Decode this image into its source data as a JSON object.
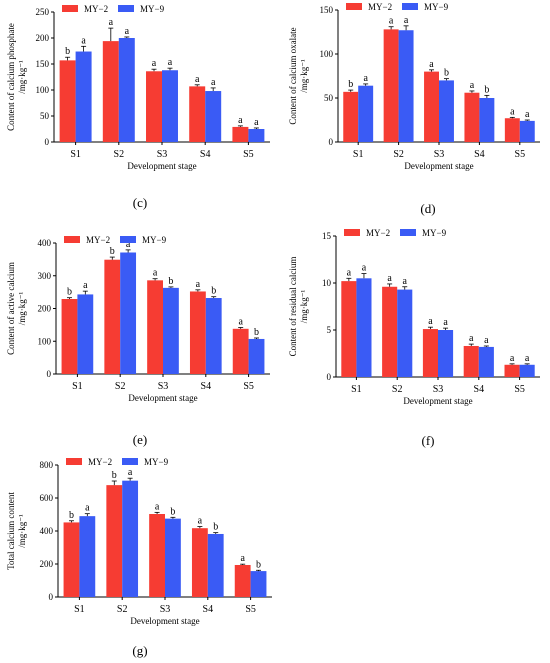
{
  "colors": {
    "MY-2": "#f63c33",
    "MY-9": "#3a5bf5"
  },
  "chart_data": [
    {
      "type": "bar",
      "panel_label": "(c)",
      "ylabel_lines": [
        "Content of calcium phosphate",
        "/mg·kg⁻¹"
      ],
      "xlabel": "Development stage",
      "categories": [
        "S1",
        "S2",
        "S3",
        "S4",
        "S5"
      ],
      "ylim": [
        0,
        250
      ],
      "yticks": [
        0,
        50,
        100,
        150,
        200,
        250
      ],
      "legend": [
        "MY−2",
        "MY−9"
      ],
      "series": [
        {
          "name": "MY−2",
          "values": [
            157,
            194,
            136,
            107,
            29
          ],
          "errors": [
            6,
            25,
            4,
            3,
            2
          ],
          "sig": [
            "b",
            "a",
            "a",
            "a",
            "a"
          ]
        },
        {
          "name": "MY−9",
          "values": [
            174,
            200,
            138,
            98,
            25
          ],
          "errors": [
            10,
            2,
            4,
            6,
            2
          ],
          "sig": [
            "a",
            "a",
            "a",
            "a",
            "a"
          ]
        }
      ]
    },
    {
      "type": "bar",
      "panel_label": "(d)",
      "ylabel_lines": [
        "Content of calcium oxalate",
        "/mg·kg⁻¹"
      ],
      "xlabel": "Development stage",
      "categories": [
        "S1",
        "S2",
        "S3",
        "S4",
        "S5"
      ],
      "ylim": [
        0,
        150
      ],
      "yticks": [
        0,
        50,
        100,
        150
      ],
      "legend": [
        "MY−2",
        "MY−9"
      ],
      "series": [
        {
          "name": "MY−2",
          "values": [
            57,
            128,
            80,
            56,
            27
          ],
          "errors": [
            2,
            3,
            2,
            2,
            1
          ],
          "sig": [
            "b",
            "a",
            "a",
            "a",
            "a"
          ]
        },
        {
          "name": "MY−9",
          "values": [
            64,
            127,
            70,
            50,
            24
          ],
          "errors": [
            2,
            5,
            2,
            3,
            1
          ],
          "sig": [
            "a",
            "a",
            "b",
            "b",
            "a"
          ]
        }
      ]
    },
    {
      "type": "bar",
      "panel_label": "(e)",
      "ylabel_lines": [
        "Content of active calcium",
        "/mg·kg⁻¹"
      ],
      "xlabel": "Development stage",
      "categories": [
        "S1",
        "S2",
        "S3",
        "S4",
        "S5"
      ],
      "ylim": [
        0,
        400
      ],
      "yticks": [
        0,
        100,
        200,
        300,
        400
      ],
      "legend": [
        "MY−2",
        "MY−9"
      ],
      "series": [
        {
          "name": "MY−2",
          "values": [
            229,
            349,
            286,
            252,
            138
          ],
          "errors": [
            4,
            8,
            5,
            5,
            4
          ],
          "sig": [
            "b",
            "b",
            "a",
            "a",
            "a"
          ]
        },
        {
          "name": "MY−9",
          "values": [
            243,
            371,
            263,
            232,
            107
          ],
          "errors": [
            10,
            8,
            3,
            4,
            3
          ],
          "sig": [
            "a",
            "a",
            "b",
            "b",
            "b"
          ]
        }
      ]
    },
    {
      "type": "bar",
      "panel_label": "(f)",
      "ylabel_lines": [
        "Content of residual calcium",
        "/mg·kg⁻¹"
      ],
      "xlabel": "Development stage",
      "categories": [
        "S1",
        "S2",
        "S3",
        "S4",
        "S5"
      ],
      "ylim": [
        0,
        15
      ],
      "yticks": [
        0,
        5,
        10,
        15
      ],
      "legend": [
        "MY−2",
        "MY−9"
      ],
      "series": [
        {
          "name": "MY−2",
          "values": [
            10.2,
            9.6,
            5.1,
            3.3,
            1.3
          ],
          "errors": [
            0.3,
            0.3,
            0.2,
            0.2,
            0.1
          ],
          "sig": [
            "a",
            "a",
            "a",
            "a",
            "a"
          ]
        },
        {
          "name": "MY−9",
          "values": [
            10.5,
            9.3,
            5.0,
            3.2,
            1.3
          ],
          "errors": [
            0.5,
            0.3,
            0.2,
            0.1,
            0.1
          ],
          "sig": [
            "a",
            "a",
            "a",
            "a",
            "a"
          ]
        }
      ]
    },
    {
      "type": "bar",
      "panel_label": "(g)",
      "ylabel_lines": [
        "Total calcium content",
        "/mg·kg⁻¹"
      ],
      "xlabel": "Development stage",
      "categories": [
        "S1",
        "S2",
        "S3",
        "S4",
        "S5"
      ],
      "ylim": [
        0,
        800
      ],
      "yticks": [
        0,
        200,
        400,
        600,
        800
      ],
      "legend": [
        "MY−2",
        "MY−9"
      ],
      "series": [
        {
          "name": "MY−2",
          "values": [
            452,
            678,
            503,
            417,
            194
          ],
          "errors": [
            10,
            25,
            10,
            10,
            5
          ],
          "sig": [
            "b",
            "b",
            "a",
            "a",
            "a"
          ]
        },
        {
          "name": "MY−9",
          "values": [
            490,
            705,
            475,
            382,
            157
          ],
          "errors": [
            15,
            15,
            8,
            8,
            5
          ],
          "sig": [
            "a",
            "a",
            "b",
            "b",
            "b"
          ]
        }
      ]
    }
  ]
}
